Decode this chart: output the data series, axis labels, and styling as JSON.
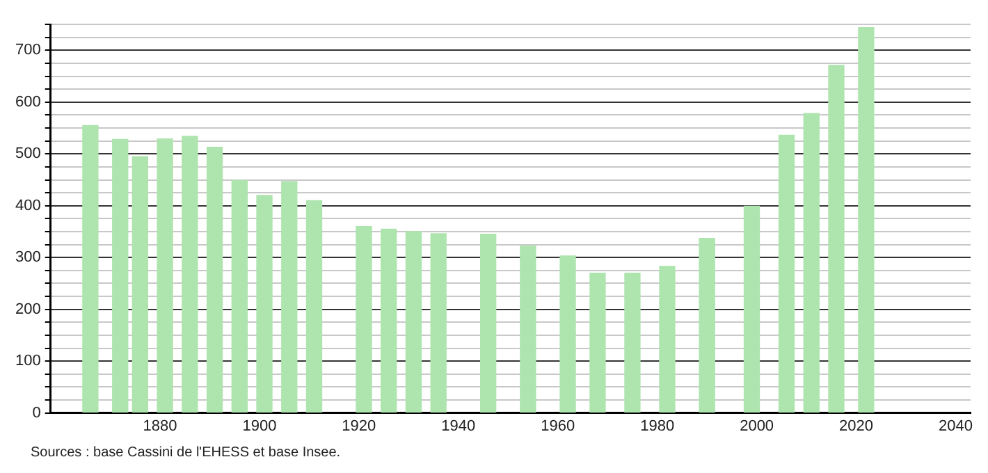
{
  "chart_data": {
    "type": "bar",
    "x": [
      1866,
      1872,
      1876,
      1881,
      1886,
      1891,
      1896,
      1901,
      1906,
      1911,
      1921,
      1926,
      1931,
      1936,
      1946,
      1954,
      1962,
      1968,
      1975,
      1982,
      1990,
      1999,
      2006,
      2011,
      2016,
      2022
    ],
    "values": [
      555,
      528,
      495,
      529,
      534,
      513,
      449,
      420,
      447,
      410,
      360,
      355,
      350,
      346,
      345,
      322,
      303,
      270,
      270,
      283,
      337,
      399,
      536,
      578,
      671,
      744
    ],
    "color": "#aee4ae",
    "xlim": [
      1858,
      2043
    ],
    "xticks": [
      1880,
      1900,
      1920,
      1940,
      1960,
      1980,
      2000,
      2020,
      2040
    ],
    "ylim": [
      0,
      750
    ],
    "yticks": [
      0,
      {
        "value": 25,
        "label": null
      },
      {
        "value": 50,
        "label": null
      },
      {
        "value": 75,
        "label": null
      },
      100,
      {
        "value": 125,
        "label": null
      },
      {
        "value": 150,
        "label": null
      },
      {
        "value": 175,
        "label": null
      },
      200,
      {
        "value": 225,
        "label": null
      },
      {
        "value": 250,
        "label": null
      },
      {
        "value": 275,
        "label": null
      },
      300,
      {
        "value": 325,
        "label": null
      },
      {
        "value": 350,
        "label": null
      },
      {
        "value": 375,
        "label": null
      },
      400,
      {
        "value": 425,
        "label": null
      },
      {
        "value": 450,
        "label": null
      },
      {
        "value": 475,
        "label": null
      },
      500,
      {
        "value": 525,
        "label": null
      },
      {
        "value": 550,
        "label": null
      },
      {
        "value": 575,
        "label": null
      },
      600,
      {
        "value": 625,
        "label": null
      },
      {
        "value": 650,
        "label": null
      },
      {
        "value": 675,
        "label": null
      },
      700,
      {
        "value": 725,
        "label": null
      },
      {
        "value": 750,
        "label": null
      }
    ],
    "grid": "y",
    "annotations": [
      "Sources : base Cassini de l'EHESS et base Insee."
    ]
  }
}
